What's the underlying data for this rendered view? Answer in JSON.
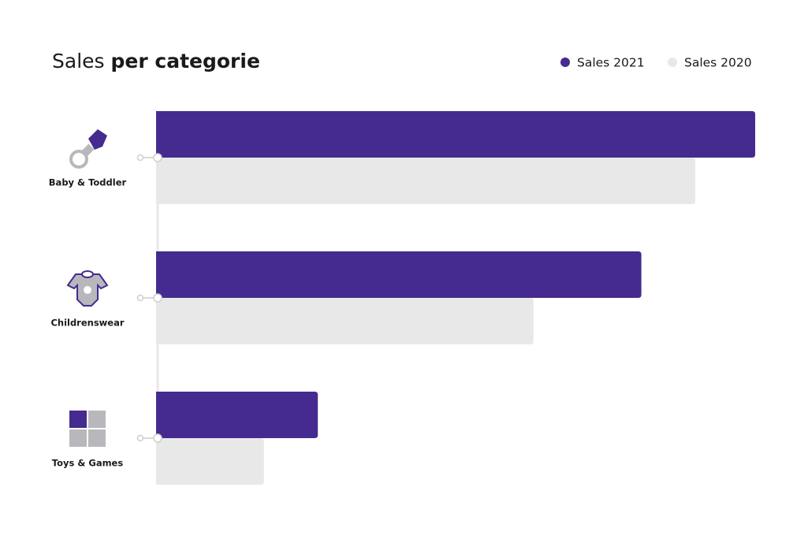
{
  "chart_data": {
    "type": "bar",
    "orientation": "horizontal",
    "title": [
      "Sales",
      "per categorie"
    ],
    "categories": [
      "Baby & Toddler",
      "Childrenswear",
      "Toys & Games"
    ],
    "series": [
      {
        "name": "Sales 2021",
        "color": "#452a8f",
        "values": [
          100,
          81,
          27
        ]
      },
      {
        "name": "Sales 2020",
        "color": "#e8e8e8",
        "values": [
          90,
          63,
          18
        ]
      }
    ],
    "xlim": [
      0,
      100
    ],
    "legend": "top-right"
  }
}
